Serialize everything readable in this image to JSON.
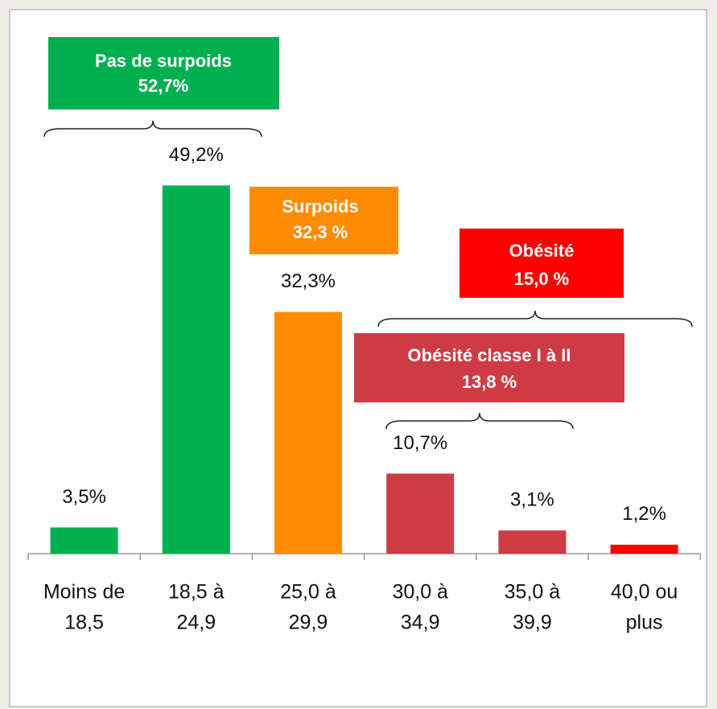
{
  "chart_data": {
    "type": "bar",
    "categories": [
      [
        "Moins de",
        "18,5"
      ],
      [
        "18,5 à",
        "24,9"
      ],
      [
        "25,0 à",
        "29,9"
      ],
      [
        "30,0 à",
        "34,9"
      ],
      [
        "35,0 à",
        "39,9"
      ],
      [
        "40,0 ou",
        "plus"
      ]
    ],
    "values": [
      3.5,
      49.2,
      32.3,
      10.7,
      3.1,
      1.2
    ],
    "value_labels": [
      "3,5%",
      "49,2%",
      "32,3%",
      "10,7%",
      "3,1%",
      "1,2%"
    ],
    "colors": [
      "#00b050",
      "#00b050",
      "#ff8c00",
      "#cf3b45",
      "#cf3b45",
      "#ff0000"
    ],
    "annotations": [
      {
        "lines": [
          "Pas de surpoids",
          "52,7%"
        ],
        "color": "#00b050"
      },
      {
        "lines": [
          "Surpoids",
          "32,3 %"
        ],
        "color": "#ff8c00"
      },
      {
        "lines": [
          "Obésité",
          "15,0 %"
        ],
        "color": "#ff0000"
      },
      {
        "lines": [
          "Obésité classe I à II",
          "13,8 %"
        ],
        "color": "#cf3b45"
      }
    ]
  }
}
